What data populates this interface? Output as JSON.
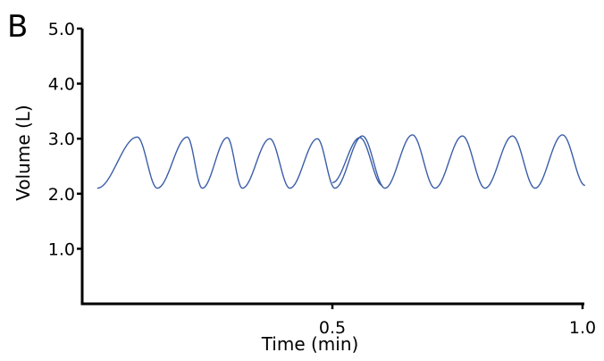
{
  "panel_label": "B",
  "chart_data": {
    "type": "line",
    "title": "",
    "xlabel": "Time (min)",
    "ylabel": "Volume (L)",
    "xlim": [
      0,
      1.0
    ],
    "ylim": [
      0,
      5.0
    ],
    "x_ticks": [
      0.5,
      1.0
    ],
    "x_tick_labels": [
      "0.5",
      "1.0"
    ],
    "y_ticks": [
      1.0,
      2.0,
      3.0,
      4.0,
      5.0
    ],
    "y_tick_labels": [
      "1.0",
      "2.0",
      "3.0",
      "4.0",
      "5.0"
    ],
    "grid": false,
    "series": [
      {
        "color": "#3b5ea8",
        "x": [
          0.03,
          0.11,
          0.15,
          0.21,
          0.24,
          0.29,
          0.32,
          0.375,
          0.415,
          0.47,
          0.505,
          0.56,
          0.605,
          0.66,
          0.705,
          0.76,
          0.805,
          0.86,
          0.905,
          0.96,
          1.005
        ],
        "y": [
          2.1,
          3.03,
          2.1,
          3.03,
          2.1,
          3.02,
          2.1,
          3.0,
          2.1,
          3.0,
          2.1,
          3.05,
          2.1,
          3.07,
          2.1,
          3.05,
          2.1,
          3.05,
          2.1,
          3.07,
          2.15
        ]
      },
      {
        "color": "#3b5ea8",
        "x": [
          0.5,
          0.555,
          0.6
        ],
        "y": [
          2.2,
          3.02,
          2.15
        ]
      }
    ]
  }
}
